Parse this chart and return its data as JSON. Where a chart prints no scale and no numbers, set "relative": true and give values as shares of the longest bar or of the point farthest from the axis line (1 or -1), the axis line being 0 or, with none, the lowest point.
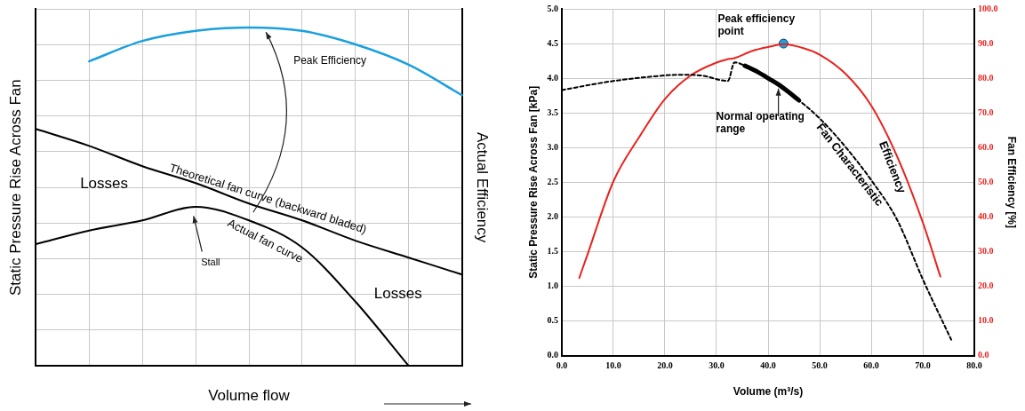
{
  "chart_data": [
    {
      "type": "line",
      "relative": true,
      "categories": [
        null,
        null,
        null,
        null,
        null,
        null,
        null,
        null,
        null
      ],
      "series": [
        {
          "name": "Theoretical fan curve (backward bladed)",
          "color": "#000000",
          "values": [
            0.7,
            0.65,
            0.59,
            0.54,
            0.48,
            0.43,
            0.37,
            0.32,
            0.27
          ]
        },
        {
          "name": "Actual fan curve",
          "color": "#000000",
          "values": [
            0.36,
            0.4,
            0.43,
            0.47,
            0.43,
            0.35,
            0.19,
            0.0,
            null
          ]
        },
        {
          "color": "#1a9fe0",
          "values": [
            null,
            0.9,
            0.96,
            0.99,
            1.0,
            0.99,
            0.95,
            0.89,
            0.8
          ]
        }
      ],
      "xlabel": "Volume flow",
      "ylabel": "Static Pressure Rise Across Fan",
      "y2label": "Actual Efficiency",
      "annotations": [
        "Losses",
        "Losses",
        "Stall",
        "Peak Efficiency"
      ],
      "grid": true,
      "legend": false,
      "marker": "none",
      "line_style": "solid"
    },
    {
      "type": "line",
      "xlabel": "Volume (m³/s)",
      "ylabel": "Static Pressure Rise Across Fan [kPa]",
      "y2label": "Fan Efficiency [%]",
      "series": [
        {
          "name": "Fan Characteristic",
          "color": "#000000",
          "line_style": "dashed",
          "x": [
            0,
            10,
            20,
            23,
            27,
            32.2,
            33.5,
            35.5,
            40,
            46,
            50,
            55,
            60,
            65,
            70,
            75.5
          ],
          "values": [
            3.83,
            3.96,
            4.04,
            4.05,
            4.04,
            3.96,
            4.23,
            4.18,
            4.0,
            3.68,
            3.42,
            3.01,
            2.53,
            1.96,
            1.1,
            0.23
          ]
        },
        {
          "color": "#000000",
          "line_style": "solid",
          "x": [
            35.5,
            38,
            40,
            42,
            44,
            46
          ],
          "values": [
            4.18,
            4.09,
            4.0,
            3.91,
            3.8,
            3.68
          ]
        },
        {
          "name": "Efficiency",
          "color": "#e8231f",
          "axis": "y2",
          "line_style": "solid",
          "x": [
            3.4,
            5,
            10,
            15,
            20,
            25,
            30,
            32,
            33.5,
            37,
            40,
            43,
            47,
            50,
            55,
            60,
            65,
            70,
            73.4
          ],
          "values": [
            22.4,
            29.2,
            50.2,
            63,
            74,
            80.8,
            84.5,
            85.4,
            85.8,
            87.9,
            89,
            89.8,
            88.6,
            86.8,
            81.3,
            72.1,
            57.5,
            38.4,
            22.8
          ]
        },
        {
          "type": "scatter",
          "color": "#1ba1e2",
          "axis": "y2",
          "marker": "circle",
          "x": [
            43
          ],
          "values": [
            90
          ]
        }
      ],
      "annotations": [
        {
          "text": "Peak efficiency point",
          "x": 43,
          "y": 4.5
        },
        {
          "text": "Normal operating range",
          "x": 42,
          "y": 3.87
        }
      ],
      "xlim": [
        0,
        80
      ],
      "xticks": [
        {
          "value": 0,
          "label": "0.0"
        },
        {
          "value": 10,
          "label": "10.0"
        },
        {
          "value": 20,
          "label": "20.0"
        },
        {
          "value": 30,
          "label": "30.0"
        },
        {
          "value": 40,
          "label": "40.0"
        },
        {
          "value": 50,
          "label": "50.0"
        },
        {
          "value": 60,
          "label": "60.0"
        },
        {
          "value": 70,
          "label": "70.0"
        },
        {
          "value": 80,
          "label": "80.0"
        }
      ],
      "ylim": [
        0,
        5
      ],
      "yticks": [
        {
          "value": 0,
          "label": "0.0"
        },
        0.5,
        {
          "value": 1,
          "label": "1.0"
        },
        1.5,
        {
          "value": 2,
          "label": "2.0"
        },
        2.5,
        {
          "value": 3,
          "label": "3.0"
        },
        3.5,
        {
          "value": 4,
          "label": "4.0"
        },
        4.5,
        {
          "value": 5,
          "label": "5.0"
        }
      ],
      "y2lim": [
        0,
        100
      ],
      "y2ticks": [
        {
          "value": 0,
          "label": "0.0"
        },
        {
          "value": 10,
          "label": "10.0"
        },
        {
          "value": 20,
          "label": "20.0"
        },
        {
          "value": 30,
          "label": "30.0"
        },
        {
          "value": 40,
          "label": "40.0"
        },
        {
          "value": 50,
          "label": "50.0"
        },
        {
          "value": 60,
          "label": "60.0"
        },
        {
          "value": 70,
          "label": "70.0"
        },
        {
          "value": 80,
          "label": "80.0"
        },
        {
          "value": 90,
          "label": "90.0"
        },
        {
          "value": 100,
          "label": "100.0"
        }
      ],
      "grid": true,
      "legend": false,
      "marker": "none"
    }
  ]
}
